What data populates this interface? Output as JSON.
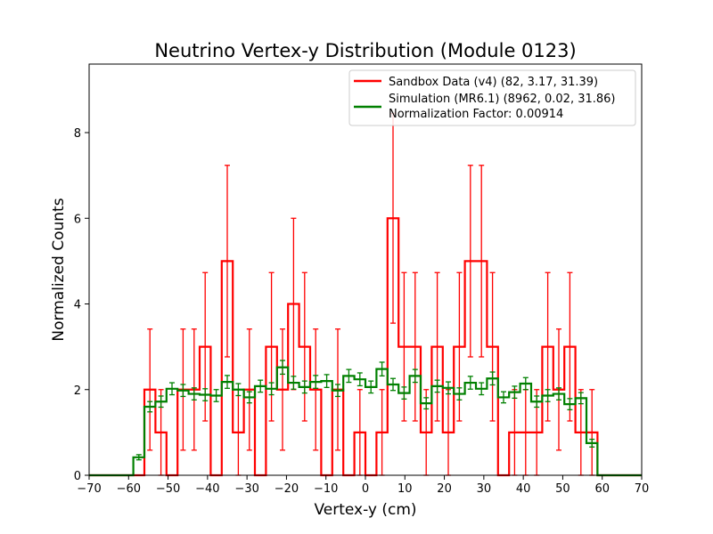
{
  "chart_data": {
    "type": "histogram",
    "title": "Neutrino Vertex-y Distribution (Module 0123)",
    "xlabel": "Vertex-y (cm)",
    "ylabel": "Normalized Counts",
    "xlim": [
      -70,
      70
    ],
    "ylim": [
      0,
      9.6
    ],
    "xticks": [
      -70,
      -60,
      -50,
      -40,
      -30,
      -20,
      -10,
      0,
      10,
      20,
      30,
      40,
      50,
      60,
      70
    ],
    "xtick_labels": [
      "−70",
      "−60",
      "−50",
      "−40",
      "−30",
      "−20",
      "−10",
      "0",
      "10",
      "20",
      "30",
      "40",
      "50",
      "60",
      "70"
    ],
    "yticks": [
      0,
      2,
      4,
      6,
      8
    ],
    "ytick_labels": [
      "0",
      "2",
      "4",
      "6",
      "8"
    ],
    "grid": false,
    "legend_position": "top-right",
    "bin_edges": [
      -70,
      -67.2,
      -64.4,
      -61.6,
      -58.8,
      -56,
      -53.2,
      -50.4,
      -47.6,
      -44.8,
      -42,
      -39.2,
      -36.4,
      -33.6,
      -30.8,
      -28,
      -25.2,
      -22.4,
      -19.6,
      -16.8,
      -14,
      -11.2,
      -8.4,
      -5.6,
      -2.8,
      0,
      2.8,
      5.6,
      8.4,
      11.2,
      14,
      16.8,
      19.6,
      22.4,
      25.2,
      28,
      30.8,
      33.6,
      36.4,
      39.2,
      42,
      44.8,
      47.6,
      50.4,
      53.2,
      56,
      58.8,
      61.6,
      64.4,
      67.2,
      70
    ],
    "series": [
      {
        "name": "Sandbox Data (v4) (82, 3.17, 31.39)",
        "color": "#ff0000",
        "values": [
          0,
          0,
          0,
          0,
          0,
          2,
          1,
          0,
          2,
          2,
          3,
          0,
          5,
          1,
          2,
          0,
          3,
          2,
          4,
          3,
          2,
          0,
          2,
          0,
          1,
          0,
          1,
          6,
          3,
          3,
          1,
          3,
          1,
          3,
          5,
          5,
          3,
          0,
          1,
          1,
          1,
          3,
          2,
          3,
          1,
          1,
          0,
          0,
          0,
          0
        ],
        "errors": [
          0,
          0,
          0,
          0,
          0,
          1.414,
          1,
          0,
          1.414,
          1.414,
          1.732,
          0,
          2.236,
          1,
          1.414,
          0,
          1.732,
          1.414,
          2,
          1.732,
          1.414,
          0,
          1.414,
          0,
          1,
          0,
          1,
          2.449,
          1.732,
          1.732,
          1,
          1.732,
          1,
          1.732,
          2.236,
          2.236,
          1.732,
          0,
          1,
          1,
          1,
          1.732,
          1.414,
          1.732,
          1,
          1,
          0,
          0,
          0,
          0
        ]
      },
      {
        "name": "Simulation (MR6.1) (8962, 0.02, 31.86)",
        "color": "#008000",
        "values": [
          0,
          0,
          0,
          0,
          0.42,
          1.6,
          1.72,
          2.02,
          1.98,
          1.9,
          1.88,
          1.86,
          2.18,
          2.0,
          1.82,
          2.08,
          2.02,
          2.52,
          2.16,
          2.06,
          2.18,
          2.2,
          1.98,
          2.32,
          2.24,
          2.06,
          2.48,
          2.12,
          1.92,
          2.32,
          1.68,
          2.08,
          2.04,
          1.9,
          2.16,
          2.02,
          2.26,
          1.82,
          1.94,
          2.14,
          1.72,
          1.86,
          1.9,
          1.66,
          1.8,
          0.75,
          0,
          0,
          0,
          0
        ],
        "errors": [
          0,
          0,
          0,
          0,
          0.06,
          0.12,
          0.13,
          0.14,
          0.14,
          0.14,
          0.14,
          0.14,
          0.15,
          0.14,
          0.13,
          0.14,
          0.14,
          0.16,
          0.15,
          0.14,
          0.15,
          0.15,
          0.14,
          0.15,
          0.15,
          0.14,
          0.16,
          0.14,
          0.14,
          0.15,
          0.13,
          0.14,
          0.14,
          0.14,
          0.15,
          0.14,
          0.15,
          0.13,
          0.14,
          0.14,
          0.13,
          0.14,
          0.14,
          0.13,
          0.13,
          0.09,
          0,
          0,
          0,
          0
        ]
      }
    ],
    "legend_extra": "Normalization Factor: 0.00914"
  }
}
